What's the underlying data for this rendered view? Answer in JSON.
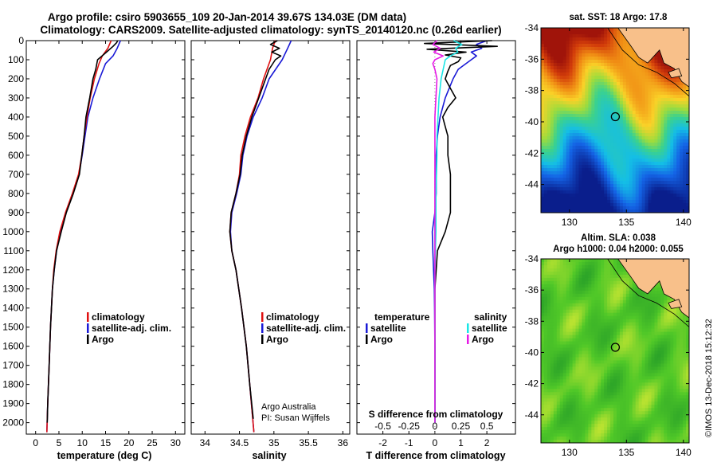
{
  "title_line1": "Argo profile: csiro 5903655_109 20-Jan-2014 39.67S 134.03E (DM data)",
  "title_line2": "Climatology: CARS2009. Satellite-adjusted climatology: synTS_20140120.nc (0.26d earlier)",
  "depth_ticks": [
    "0",
    "100",
    "200",
    "300",
    "400",
    "500",
    "600",
    "700",
    "800",
    "900",
    "1000",
    "1100",
    "1200",
    "1300",
    "1400",
    "1500",
    "1600",
    "1700",
    "1800",
    "1900",
    "2000"
  ],
  "colors": {
    "climatology": "#e01010",
    "satellite": "#1a1ad6",
    "argo": "#000000",
    "salinity_sat": "#19e6e6",
    "salinity_argo": "#e61ae6",
    "land": "#f8c08a"
  },
  "chart_data": [
    {
      "type": "line",
      "id": "temperature",
      "xlabel": "temperature (deg C)",
      "ylabel": "depth",
      "xlim": [
        -2,
        32
      ],
      "ylim": [
        2060,
        0
      ],
      "xticks": [
        "0",
        "5",
        "10",
        "15",
        "20",
        "25",
        "30"
      ],
      "legend": [
        "climatology",
        "satellite-adj. clim.",
        "Argo"
      ],
      "series": [
        {
          "name": "climatology",
          "depth": [
            0,
            40,
            80,
            120,
            200,
            300,
            400,
            500,
            600,
            700,
            800,
            900,
            1000,
            1100,
            1200,
            1300,
            1500,
            1700,
            1900,
            2050
          ],
          "values": [
            16.2,
            15.5,
            14.3,
            13.6,
            12.6,
            11.7,
            11.0,
            10.4,
            9.9,
            9.2,
            7.9,
            6.4,
            5.2,
            4.4,
            3.9,
            3.6,
            3.2,
            2.9,
            2.6,
            2.4
          ]
        },
        {
          "name": "satellite-adj. clim.",
          "depth": [
            0,
            40,
            80,
            120,
            200,
            300,
            400,
            500,
            600,
            700,
            800,
            900,
            1000,
            1100,
            1200,
            1300,
            1500,
            1700,
            1900,
            2050
          ],
          "values": [
            18.2,
            17.5,
            16.6,
            15.0,
            13.7,
            12.3,
            11.2,
            10.6,
            10.0,
            9.3,
            8.0,
            6.5,
            5.3,
            4.5,
            4.0,
            3.6,
            3.2,
            2.9,
            2.6,
            2.4
          ]
        },
        {
          "name": "Argo",
          "depth": [
            0,
            10,
            30,
            60,
            100,
            150,
            200,
            300,
            400,
            500,
            600,
            700,
            800,
            900,
            1000,
            1100,
            1200,
            1300,
            1500,
            1700,
            1900,
            2000
          ],
          "values": [
            17.6,
            17.4,
            16.6,
            15.2,
            13.3,
            12.9,
            12.3,
            11.6,
            10.8,
            10.4,
            9.9,
            9.4,
            8.1,
            6.6,
            5.5,
            4.5,
            4.0,
            3.6,
            3.2,
            2.9,
            2.6,
            2.5
          ]
        }
      ]
    },
    {
      "type": "line",
      "id": "salinity",
      "xlabel": "salinity",
      "ylabel": "depth",
      "xlim": [
        33.8,
        36.1
      ],
      "ylim": [
        2060,
        0
      ],
      "xticks": [
        "34",
        "34.5",
        "35",
        "35.5",
        "36"
      ],
      "legend": [
        "climatology",
        "satellite-adj. clim.",
        "Argo"
      ],
      "annotation": [
        "Argo Australia",
        "PI: Susan Wijffels"
      ],
      "series": [
        {
          "name": "climatology",
          "depth": [
            0,
            40,
            100,
            200,
            300,
            400,
            500,
            600,
            700,
            800,
            900,
            1000,
            1100,
            1200,
            1400,
            1600,
            1800,
            2050
          ],
          "values": [
            35.02,
            34.98,
            34.95,
            34.85,
            34.77,
            34.66,
            34.58,
            34.52,
            34.5,
            34.45,
            34.38,
            34.36,
            34.39,
            34.45,
            34.53,
            34.6,
            34.65,
            34.71
          ]
        },
        {
          "name": "satellite-adj. clim.",
          "depth": [
            0,
            40,
            100,
            200,
            300,
            400,
            500,
            600,
            700,
            800,
            900,
            1000,
            1100,
            1200,
            1400,
            1600,
            1800,
            2050
          ],
          "values": [
            35.25,
            35.2,
            35.12,
            34.93,
            34.83,
            34.7,
            34.61,
            34.55,
            34.52,
            34.46,
            34.39,
            34.37,
            34.39,
            34.45,
            34.53,
            34.6,
            34.65,
            34.71
          ]
        },
        {
          "name": "Argo",
          "depth": [
            0,
            20,
            40,
            60,
            80,
            100,
            150,
            200,
            300,
            400,
            500,
            600,
            700,
            800,
            900,
            1000,
            1100,
            1200,
            1400,
            1600,
            1800,
            1980
          ],
          "values": [
            35.05,
            34.95,
            35.08,
            34.97,
            35.1,
            35.02,
            34.93,
            34.88,
            34.78,
            34.68,
            34.6,
            34.54,
            34.51,
            34.45,
            34.38,
            34.36,
            34.39,
            34.45,
            34.53,
            34.6,
            34.65,
            34.7
          ]
        }
      ]
    },
    {
      "type": "line",
      "id": "difference",
      "xlabel": "T difference from climatology",
      "xlabel2": "S difference from climatology",
      "ylabel": "depth",
      "xlim": [
        -3,
        3.1
      ],
      "ylim": [
        2060,
        0
      ],
      "xticks": [
        "-2",
        "-1",
        "0",
        "1",
        "2"
      ],
      "xticks_salinity": [
        "-0.5",
        "-0.25",
        "0",
        "0.25",
        "0.5"
      ],
      "legend_temperature_title": "temperature",
      "legend_salinity_title": "salinity",
      "legend_temperature": [
        "satellite",
        "Argo"
      ],
      "legend_salinity": [
        "satellite",
        "Argo"
      ],
      "series": [
        {
          "name": "temperature satellite",
          "depth": [
            0,
            20,
            40,
            60,
            80,
            100,
            150,
            200,
            300,
            400,
            500,
            600,
            700,
            800,
            900,
            1000,
            1100,
            1200,
            1300,
            1400,
            1600,
            1800,
            2000
          ],
          "values": [
            2.0,
            1.6,
            1.8,
            1.4,
            1.6,
            1.4,
            0.9,
            0.7,
            0.4,
            0.2,
            0.1,
            0.05,
            0.05,
            0.05,
            0.0,
            -0.1,
            -0.08,
            -0.05,
            -0.02,
            -0.01,
            0.0,
            0.0,
            0.0
          ]
        },
        {
          "name": "temperature Argo",
          "depth": [
            0,
            15,
            30,
            45,
            60,
            75,
            90,
            110,
            130,
            160,
            200,
            250,
            300,
            350,
            400,
            450,
            500,
            600,
            700,
            800,
            900,
            1000,
            1100,
            1200,
            1300,
            1400,
            1600,
            1800,
            2000
          ],
          "values": [
            2.2,
            -0.4,
            2.4,
            -0.3,
            1.2,
            0.4,
            1.0,
            0.9,
            0.6,
            0.5,
            0.4,
            0.6,
            0.8,
            0.5,
            0.3,
            0.4,
            0.5,
            0.5,
            0.6,
            0.6,
            0.6,
            0.4,
            0.1,
            0.05,
            0.0,
            0.0,
            0.0,
            0.0,
            0.0
          ]
        },
        {
          "name": "salinity satellite",
          "depth": [
            0,
            20,
            40,
            60,
            80,
            100,
            150,
            200,
            300,
            400,
            500,
            600,
            800,
            1000,
            1200,
            1500,
            2000
          ],
          "values": [
            0.18,
            0.26,
            0.2,
            0.22,
            0.15,
            0.1,
            0.08,
            0.06,
            0.04,
            0.03,
            0.02,
            0.02,
            0.01,
            0.01,
            0.0,
            0.0,
            0.0
          ]
        },
        {
          "name": "salinity Argo",
          "depth": [
            0,
            20,
            40,
            60,
            80,
            100,
            120,
            150,
            200,
            300,
            400,
            500,
            600,
            800,
            1000,
            1200,
            1500,
            2000
          ],
          "values": [
            0.02,
            -0.02,
            0.05,
            -0.01,
            0.08,
            0.0,
            -0.02,
            0.0,
            0.02,
            0.01,
            0.0,
            0.0,
            0.0,
            0.0,
            0.0,
            0.0,
            0.0,
            0.0
          ]
        }
      ]
    },
    {
      "type": "heatmap",
      "id": "sst-map",
      "title": "sat. SST: 18 Argo: 17.8",
      "xlim": [
        127.5,
        140.5
      ],
      "ylim": [
        -45.8,
        -34
      ],
      "xticks": [
        "130",
        "135",
        "140"
      ],
      "yticks": [
        "-34",
        "-36",
        "-38",
        "-40",
        "-42",
        "-44"
      ],
      "marker": {
        "lon": 134.03,
        "lat": -39.67
      }
    },
    {
      "type": "heatmap",
      "id": "sla-map",
      "title": "Altim. SLA: 0.038",
      "subtitle": "Argo h1000: 0.04 h2000: 0.055",
      "xlim": [
        127.5,
        140.5
      ],
      "ylim": [
        -45.8,
        -34
      ],
      "xticks": [
        "130",
        "135",
        "140"
      ],
      "yticks": [
        "-34",
        "-36",
        "-38",
        "-40",
        "-42",
        "-44"
      ],
      "marker": {
        "lon": 134.03,
        "lat": -39.67
      }
    }
  ],
  "footer_stamp": "©IMOS 13-Dec-2018 15:12:32"
}
